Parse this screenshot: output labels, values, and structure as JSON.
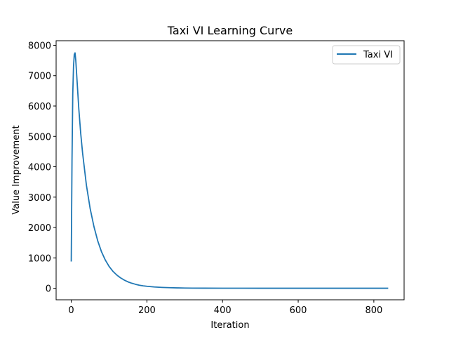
{
  "chart_data": {
    "type": "line",
    "title": "Taxi VI Learning Curve",
    "xlabel": "Iteration",
    "ylabel": "Value Improvement",
    "xlim": [
      -40,
      880
    ],
    "ylim": [
      -380,
      8150
    ],
    "xticks": [
      0,
      200,
      400,
      600,
      800
    ],
    "yticks": [
      0,
      1000,
      2000,
      3000,
      4000,
      5000,
      6000,
      7000,
      8000
    ],
    "grid": false,
    "legend_position": "top-right",
    "series": [
      {
        "name": "Taxi VI",
        "color": "#1f77b4",
        "x": [
          0,
          2,
          4,
          6,
          8,
          10,
          12,
          15,
          20,
          25,
          30,
          40,
          50,
          60,
          70,
          80,
          90,
          100,
          110,
          120,
          130,
          140,
          150,
          160,
          170,
          180,
          190,
          200,
          220,
          240,
          260,
          280,
          300,
          320,
          350,
          400,
          450,
          500,
          600,
          700,
          800,
          838
        ],
        "y": [
          880,
          4200,
          6400,
          7300,
          7700,
          7750,
          7500,
          6900,
          5900,
          5100,
          4450,
          3400,
          2620,
          2030,
          1560,
          1200,
          930,
          720,
          560,
          440,
          345,
          270,
          210,
          165,
          130,
          100,
          80,
          65,
          42,
          28,
          18,
          12,
          8,
          5,
          3,
          1.5,
          0.7,
          0.3,
          0.05,
          0.01,
          0,
          0
        ]
      }
    ]
  }
}
